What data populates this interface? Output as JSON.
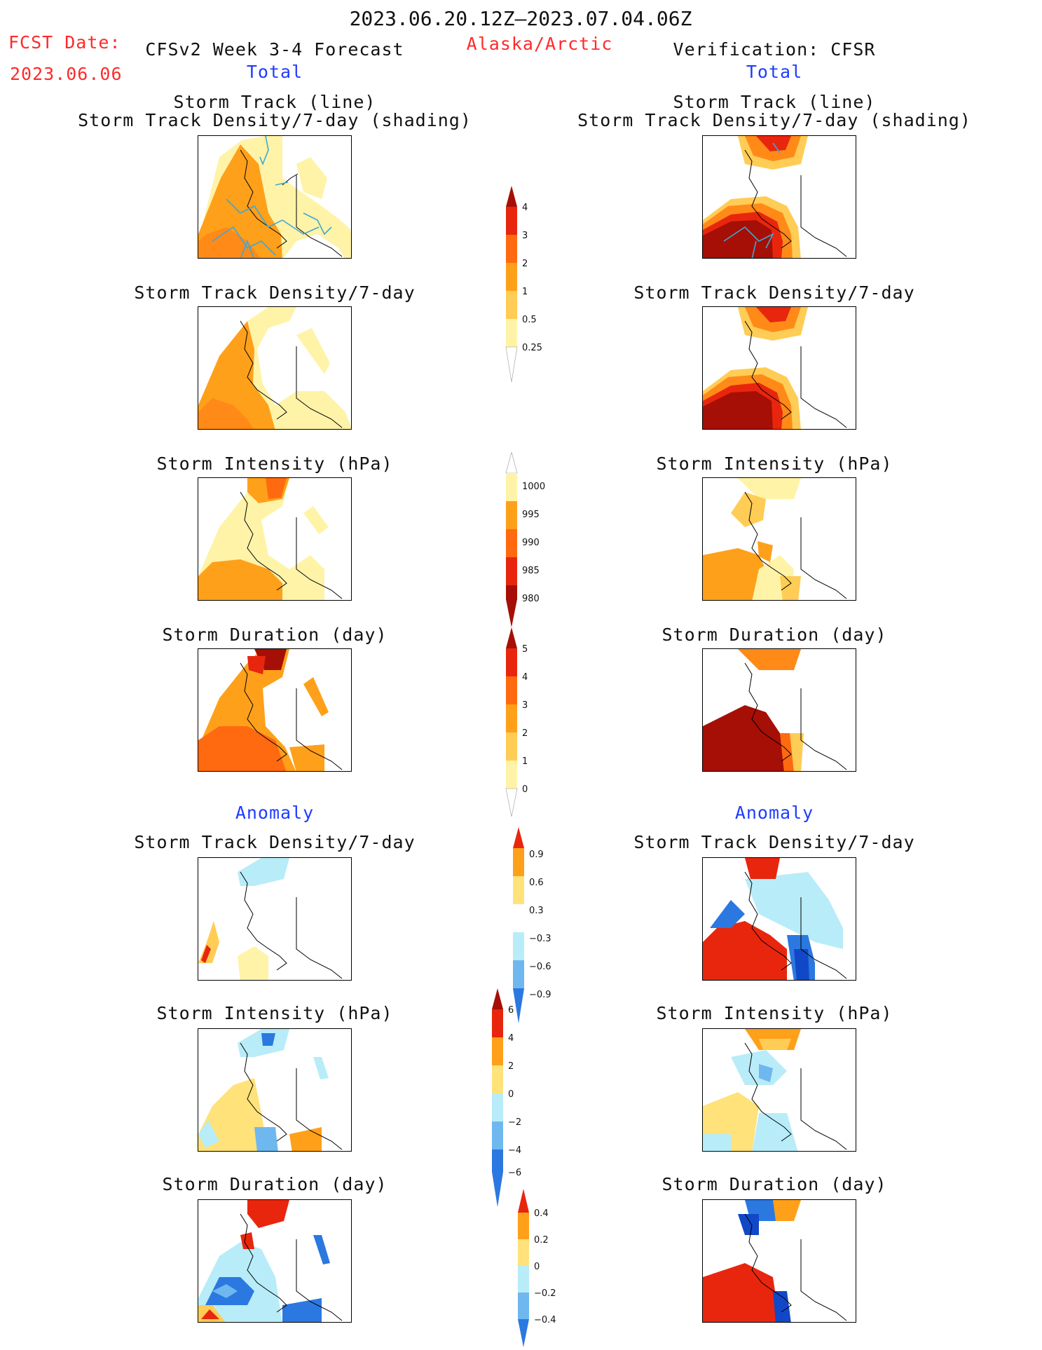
{
  "header": {
    "period": "2023.06.20.12Z–2023.07.04.06Z",
    "fcst_date_label": "FCST Date:",
    "fcst_date_value": "2023.06.06",
    "forecast_title": "CFSv2 Week 3-4 Forecast",
    "region": "Alaska/Arctic",
    "verification_title": "Verification: CFSR",
    "total_label_left": "Total",
    "total_label_right": "Total"
  },
  "section_labels": {
    "anomaly_left": "Anomaly",
    "anomaly_right": "Anomaly"
  },
  "panels": {
    "track_line_title": "Storm Track (line)",
    "track_shading_title": "Storm Track Density/7-day (shading)",
    "density_title": "Storm Track Density/7-day",
    "intensity_title": "Storm Intensity (hPa)",
    "duration_title": "Storm Duration (day)"
  },
  "colorbars": {
    "density": [
      "4",
      "3",
      "2",
      "1",
      "0.5",
      "0.25"
    ],
    "intensity": [
      "1000",
      "995",
      "990",
      "985",
      "980"
    ],
    "duration": [
      "5",
      "4",
      "3",
      "2",
      "1",
      "0"
    ],
    "density_anom": [
      "0.9",
      "0.6",
      "0.3",
      "−0.3",
      "−0.6",
      "−0.9"
    ],
    "intensity_anom": [
      "6",
      "4",
      "2",
      "0",
      "−2",
      "−4",
      "−6"
    ],
    "duration_anom": [
      "0.4",
      "0.2",
      "0",
      "−0.2",
      "−0.4"
    ]
  },
  "colors": {
    "title_red": "#ff2a2a",
    "title_blue": "#1f3cff",
    "pale_yellow": "#fff3a8",
    "light_orange": "#ffcc55",
    "orange": "#ffa01a",
    "dark_orange": "#ff6a10",
    "red": "#e8260e",
    "dark_red": "#a50f05",
    "light_blue": "#b8ecf8",
    "mid_blue": "#6fb8ef",
    "blue": "#2b78e0",
    "dark_blue": "#1048c8",
    "track_line": "#3fa7d6"
  }
}
